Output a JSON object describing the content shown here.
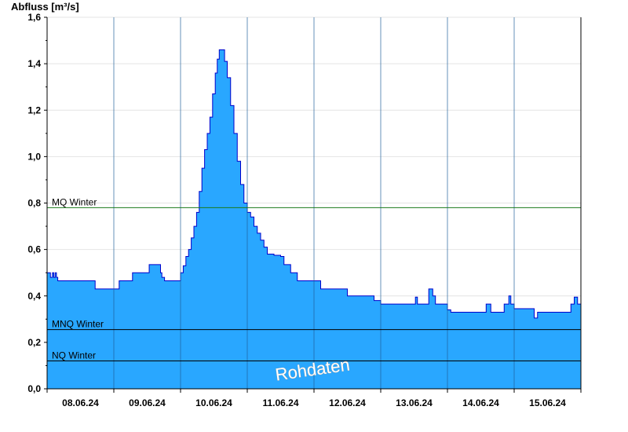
{
  "chart_data": {
    "type": "area",
    "ylabel": "Abfluss [m³/s]",
    "ylim": [
      0,
      1.6
    ],
    "y_ticks": [
      "0,0",
      "0,2",
      "0,4",
      "0,6",
      "0,8",
      "1,0",
      "1,2",
      "1,4",
      "1,6"
    ],
    "x_range": [
      0,
      8
    ],
    "x_tick_labels": [
      "08.06.24",
      "09.06.24",
      "10.06.24",
      "11.06.24",
      "12.06.24",
      "13.06.24",
      "14.06.24",
      "15.06.24"
    ],
    "grid": true,
    "watermark": "Rohdaten",
    "colors": {
      "fill": "#29a7ff",
      "line": "#0000cc",
      "mq": "#1a7a1a",
      "mnq": "#000000",
      "nq": "#000000"
    },
    "reference_lines": [
      {
        "label": "MQ Winter",
        "value": 0.78,
        "color": "#1a7a1a"
      },
      {
        "label": "MNQ Winter",
        "value": 0.255,
        "color": "#000000"
      },
      {
        "label": "NQ Winter",
        "value": 0.12,
        "color": "#000000"
      }
    ],
    "series": [
      {
        "x": [
          0,
          0.05,
          0.08,
          0.1,
          0.12,
          0.14,
          0.16,
          0.7,
          0.72,
          1.05,
          1.08,
          1.25,
          1.28,
          1.5,
          1.53,
          1.68,
          1.7,
          1.72,
          1.76,
          1.8,
          1.85,
          1.88,
          1.9,
          1.92,
          2.0,
          2.04,
          2.08,
          2.12,
          2.16,
          2.2,
          2.24,
          2.28,
          2.32,
          2.36,
          2.4,
          2.44,
          2.48,
          2.52,
          2.55,
          2.58,
          2.62,
          2.66,
          2.7,
          2.75,
          2.8,
          2.85,
          2.9,
          2.95,
          3.0,
          3.05,
          3.1,
          3.15,
          3.2,
          3.25,
          3.3,
          3.4,
          3.5,
          3.55,
          3.65,
          3.75,
          3.85,
          4.0,
          4.1,
          4.2,
          4.35,
          4.45,
          4.5,
          4.6,
          4.75,
          4.9,
          5.0,
          5.1,
          5.3,
          5.5,
          5.52,
          5.55,
          5.7,
          5.72,
          5.78,
          5.82,
          5.86,
          5.9,
          6.0,
          6.05,
          6.2,
          6.4,
          6.55,
          6.58,
          6.65,
          6.8,
          6.85,
          6.92,
          6.95,
          7.0,
          7.1,
          7.3,
          7.35,
          7.4,
          7.45,
          7.6,
          7.8,
          7.85,
          7.9,
          7.95,
          8.0
        ],
        "y": [
          0.5,
          0.48,
          0.5,
          0.48,
          0.5,
          0.48,
          0.465,
          0.465,
          0.43,
          0.43,
          0.465,
          0.465,
          0.5,
          0.5,
          0.535,
          0.535,
          0.5,
          0.48,
          0.465,
          0.465,
          0.465,
          0.465,
          0.465,
          0.465,
          0.5,
          0.53,
          0.57,
          0.6,
          0.65,
          0.7,
          0.76,
          0.85,
          0.95,
          1.03,
          1.1,
          1.17,
          1.27,
          1.36,
          1.42,
          1.46,
          1.46,
          1.41,
          1.34,
          1.22,
          1.1,
          0.98,
          0.88,
          0.8,
          0.76,
          0.74,
          0.7,
          0.67,
          0.64,
          0.61,
          0.58,
          0.575,
          0.57,
          0.535,
          0.5,
          0.465,
          0.465,
          0.465,
          0.43,
          0.43,
          0.43,
          0.43,
          0.4,
          0.4,
          0.4,
          0.38,
          0.365,
          0.365,
          0.365,
          0.365,
          0.395,
          0.365,
          0.365,
          0.43,
          0.4,
          0.365,
          0.365,
          0.365,
          0.34,
          0.33,
          0.33,
          0.33,
          0.33,
          0.365,
          0.33,
          0.33,
          0.365,
          0.4,
          0.365,
          0.345,
          0.345,
          0.305,
          0.33,
          0.33,
          0.33,
          0.33,
          0.33,
          0.365,
          0.395,
          0.365,
          0.33
        ]
      }
    ]
  }
}
